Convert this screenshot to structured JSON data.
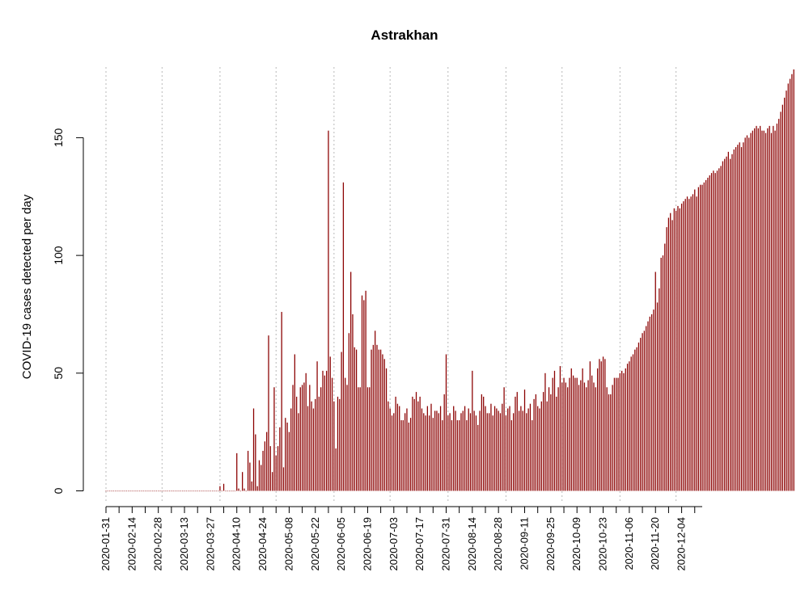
{
  "chart_data": {
    "type": "bar",
    "title": "Astrakhan",
    "ylabel": "COVID-19 cases detected per day",
    "xlabel": "",
    "x_start": "2020-01-31",
    "x_end": "2020-12-15",
    "ylim": [
      0,
      180
    ],
    "yticks": [
      0,
      50,
      100,
      150
    ],
    "xtick_labels": [
      "2020-01-31",
      "2020-02-14",
      "2020-02-28",
      "2020-03-13",
      "2020-03-27",
      "2020-04-10",
      "2020-04-24",
      "2020-05-08",
      "2020-05-22",
      "2020-06-05",
      "2020-06-19",
      "2020-07-03",
      "2020-07-17",
      "2020-07-31",
      "2020-08-14",
      "2020-08-28",
      "2020-09-11",
      "2020-09-25",
      "2020-10-09",
      "2020-10-23",
      "2020-11-06",
      "2020-11-20",
      "2020-12-04"
    ],
    "grid_dates": [
      "2020-01-31",
      "2020-03-01",
      "2020-04-01",
      "2020-05-01",
      "2020-06-01",
      "2020-07-01",
      "2020-08-01",
      "2020-09-01",
      "2020-10-01",
      "2020-11-01",
      "2020-12-01"
    ],
    "bar_color": "#8b0000",
    "values": [
      0,
      0,
      0,
      0,
      0,
      0,
      0,
      0,
      0,
      0,
      0,
      0,
      0,
      0,
      0,
      0,
      0,
      0,
      0,
      0,
      0,
      0,
      0,
      0,
      0,
      0,
      0,
      0,
      0,
      0,
      0,
      0,
      0,
      0,
      0,
      0,
      0,
      0,
      0,
      0,
      0,
      0,
      0,
      0,
      0,
      0,
      0,
      0,
      0,
      0,
      0,
      0,
      0,
      0,
      0,
      0,
      0,
      0,
      0,
      0,
      0,
      2,
      0,
      3,
      0,
      0,
      0,
      0,
      0,
      0,
      16,
      1,
      0,
      8,
      1,
      0,
      17,
      12,
      4,
      35,
      24,
      2,
      13,
      11,
      17,
      21,
      25,
      66,
      19,
      8,
      44,
      15,
      19,
      27,
      76,
      10,
      31,
      29,
      25,
      35,
      45,
      58,
      40,
      33,
      44,
      45,
      46,
      50,
      36,
      45,
      38,
      35,
      39,
      55,
      40,
      44,
      51,
      49,
      51,
      153,
      57,
      48,
      38,
      18,
      40,
      39,
      59,
      131,
      48,
      45,
      67,
      93,
      75,
      61,
      60,
      44,
      44,
      83,
      81,
      85,
      44,
      44,
      60,
      62,
      68,
      62,
      60,
      60,
      58,
      56,
      52,
      38,
      35,
      32,
      33,
      40,
      37,
      36,
      30,
      30,
      33,
      35,
      29,
      31,
      40,
      39,
      42,
      38,
      40,
      35,
      33,
      32,
      36,
      32,
      37,
      31,
      34,
      34,
      33,
      36,
      30,
      41,
      58,
      32,
      33,
      30,
      36,
      34,
      30,
      30,
      33,
      34,
      36,
      30,
      35,
      33,
      51,
      34,
      32,
      28,
      34,
      41,
      40,
      36,
      33,
      33,
      37,
      32,
      36,
      35,
      34,
      33,
      37,
      44,
      32,
      35,
      36,
      30,
      33,
      40,
      42,
      34,
      36,
      34,
      43,
      33,
      35,
      37,
      30,
      39,
      41,
      36,
      35,
      38,
      42,
      50,
      38,
      44,
      41,
      48,
      51,
      40,
      44,
      53,
      46,
      48,
      46,
      44,
      48,
      52,
      49,
      48,
      48,
      45,
      47,
      52,
      46,
      44,
      47,
      55,
      49,
      46,
      44,
      52,
      56,
      55,
      57,
      56,
      44,
      41,
      41,
      45,
      48,
      48,
      48,
      50,
      51,
      50,
      52,
      54,
      55,
      57,
      58,
      60,
      61,
      63,
      65,
      67,
      68,
      70,
      72,
      74,
      75,
      77,
      93,
      80,
      86,
      99,
      100,
      105,
      112,
      116,
      118,
      115,
      120,
      119,
      121,
      120,
      122,
      123,
      124,
      125,
      124,
      125,
      126,
      128,
      125,
      129,
      130,
      130,
      131,
      132,
      133,
      134,
      135,
      136,
      135,
      136,
      137,
      138,
      140,
      141,
      142,
      144,
      141,
      143,
      145,
      146,
      147,
      148,
      146,
      148,
      150,
      151,
      150,
      152,
      153,
      154,
      155,
      154,
      155,
      153,
      153,
      152,
      154,
      155,
      152,
      155,
      153,
      156,
      158,
      161,
      164,
      167,
      170,
      173,
      175,
      177,
      179
    ]
  }
}
